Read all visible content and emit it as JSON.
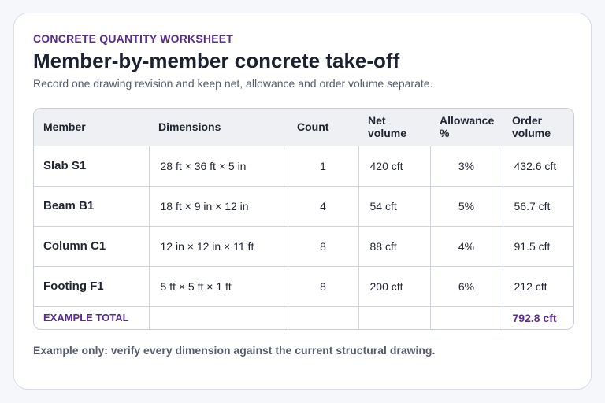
{
  "header": {
    "eyebrow": "CONCRETE QUANTITY WORKSHEET",
    "title": "Member-by-member concrete take-off",
    "subtitle": "Record one drawing revision and keep net, allowance and order volume separate."
  },
  "table": {
    "columns": [
      {
        "label": "Member"
      },
      {
        "label": "Dimensions"
      },
      {
        "label": "Count"
      },
      {
        "label": "Net volume"
      },
      {
        "label": "Allowance %"
      },
      {
        "label": "Order volume"
      }
    ],
    "rows": [
      {
        "member": "Slab S1",
        "dimensions": "28 ft × 36 ft × 5 in",
        "count": "1",
        "net": "420 cft",
        "allowance": "3%",
        "order": "432.6 cft"
      },
      {
        "member": "Beam B1",
        "dimensions": "18 ft × 9 in × 12 in",
        "count": "4",
        "net": "54 cft",
        "allowance": "5%",
        "order": "56.7 cft"
      },
      {
        "member": "Column C1",
        "dimensions": "12 in × 12 in × 11 ft",
        "count": "8",
        "net": "88 cft",
        "allowance": "4%",
        "order": "91.5 cft"
      },
      {
        "member": "Footing F1",
        "dimensions": "5 ft × 5 ft × 1 ft",
        "count": "8",
        "net": "200 cft",
        "allowance": "6%",
        "order": "212 cft"
      }
    ],
    "total": {
      "label": "EXAMPLE TOTAL",
      "order": "792.8 cft"
    }
  },
  "footnote": "Example only: verify every dimension against the current structural drawing.",
  "colors": {
    "accent": "#5b2a8e",
    "text": "#1f2430",
    "muted": "#555c6b",
    "header_bg": "#eef0f4",
    "border": "#cfd3dc"
  }
}
